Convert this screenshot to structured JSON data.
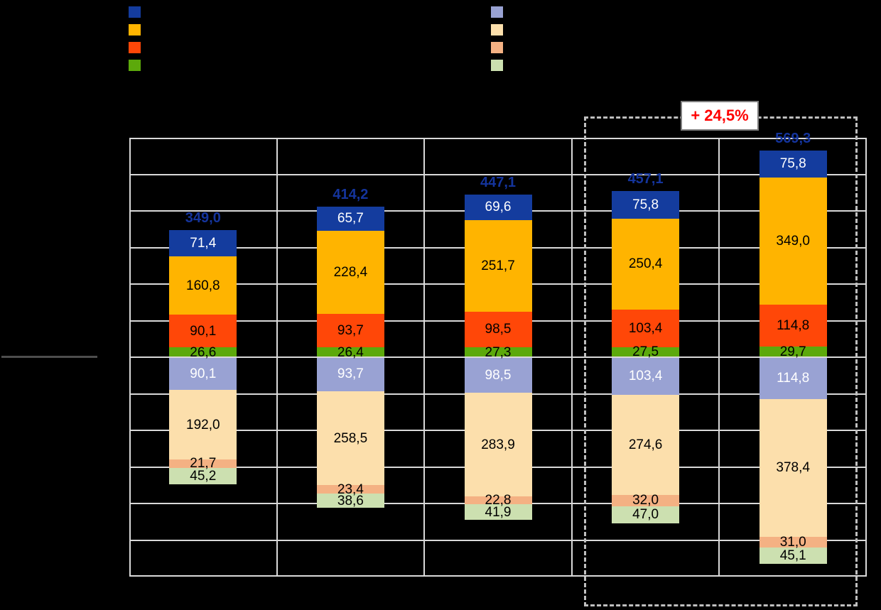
{
  "colors": {
    "background": "#000000",
    "grid": "#D9D9D9",
    "divider": "#4D4D4D",
    "dashed_box": "#BFBFBF",
    "total_label": "#14349C",
    "annotation_text": "#FF0000",
    "annotation_bg": "#FFFFFF",
    "annotation_border": "#7F7F7F"
  },
  "legend": {
    "left": [
      {
        "name": "dark-blue",
        "color": "#143C9E",
        "label": ""
      },
      {
        "name": "amber",
        "color": "#FFB400",
        "label": ""
      },
      {
        "name": "orange-red",
        "color": "#FF4708",
        "label": ""
      },
      {
        "name": "green",
        "color": "#5CA90B",
        "label": ""
      }
    ],
    "right": [
      {
        "name": "periwinkle",
        "color": "#99A2D3",
        "label": ""
      },
      {
        "name": "peach",
        "color": "#FCDFAC",
        "label": ""
      },
      {
        "name": "salmon",
        "color": "#F4B183",
        "label": ""
      },
      {
        "name": "light-green",
        "color": "#CCE0B0",
        "label": ""
      }
    ]
  },
  "chart_data": {
    "type": "bar",
    "stacked": true,
    "diverging": true,
    "legend_position": "top",
    "grid": "on",
    "categories": [
      "",
      "",
      "",
      "",
      ""
    ],
    "totals": [
      349.0,
      414.2,
      447.1,
      457.1,
      569.3
    ],
    "totals_display": [
      "349,0",
      "414,2",
      "447,1",
      "457,1",
      "569,3"
    ],
    "series": [
      {
        "name": "dark-blue",
        "side": "above",
        "color": "#143C9E",
        "label_color": "#FFFFFF",
        "values": [
          71.4,
          65.7,
          69.6,
          75.8,
          75.8
        ],
        "labels": [
          "71,4",
          "65,7",
          "69,6",
          "75,8",
          "75,8"
        ]
      },
      {
        "name": "amber",
        "side": "above",
        "color": "#FFB400",
        "label_color": "#000000",
        "values": [
          160.8,
          228.4,
          251.7,
          250.4,
          349.0
        ],
        "labels": [
          "160,8",
          "228,4",
          "251,7",
          "250,4",
          "349,0"
        ]
      },
      {
        "name": "orange-red",
        "side": "above",
        "color": "#FF4708",
        "label_color": "#000000",
        "values": [
          90.1,
          93.7,
          98.5,
          103.4,
          114.8
        ],
        "labels": [
          "90,1",
          "93,7",
          "98,5",
          "103,4",
          "114,8"
        ]
      },
      {
        "name": "green",
        "side": "above",
        "color": "#5CA90B",
        "label_color": "#000000",
        "values": [
          26.6,
          26.4,
          27.3,
          27.5,
          29.7
        ],
        "labels": [
          "26,6",
          "26,4",
          "27,3",
          "27,5",
          "29,7"
        ]
      },
      {
        "name": "periwinkle",
        "side": "below",
        "color": "#99A2D3",
        "label_color": "#FFFFFF",
        "values": [
          90.1,
          93.7,
          98.5,
          103.4,
          114.8
        ],
        "labels": [
          "90,1",
          "93,7",
          "98,5",
          "103,4",
          "114,8"
        ]
      },
      {
        "name": "peach",
        "side": "below",
        "color": "#FCDFAC",
        "label_color": "#000000",
        "values": [
          192.0,
          258.5,
          283.9,
          274.6,
          378.4
        ],
        "labels": [
          "192,0",
          "258,5",
          "283,9",
          "274,6",
          "378,4"
        ]
      },
      {
        "name": "salmon",
        "side": "below",
        "color": "#F4B183",
        "label_color": "#000000",
        "values": [
          21.7,
          23.4,
          22.8,
          32.0,
          31.0
        ],
        "labels": [
          "21,7",
          "23,4",
          "22,8",
          "32,0",
          "31,0"
        ]
      },
      {
        "name": "light-green",
        "side": "below",
        "color": "#CCE0B0",
        "label_color": "#000000",
        "values": [
          45.2,
          38.6,
          41.9,
          47.0,
          45.1
        ],
        "labels": [
          "45,2",
          "38,6",
          "41,9",
          "47,0",
          "45,1"
        ]
      }
    ],
    "annotation": {
      "text": "+ 24,5%",
      "applies_to": "last two bars (dashed highlight box)"
    },
    "axis": {
      "gridline_rows": 12,
      "zero_row": 6,
      "units_per_gridline": 100,
      "ylim": [
        -620,
        620
      ]
    }
  }
}
